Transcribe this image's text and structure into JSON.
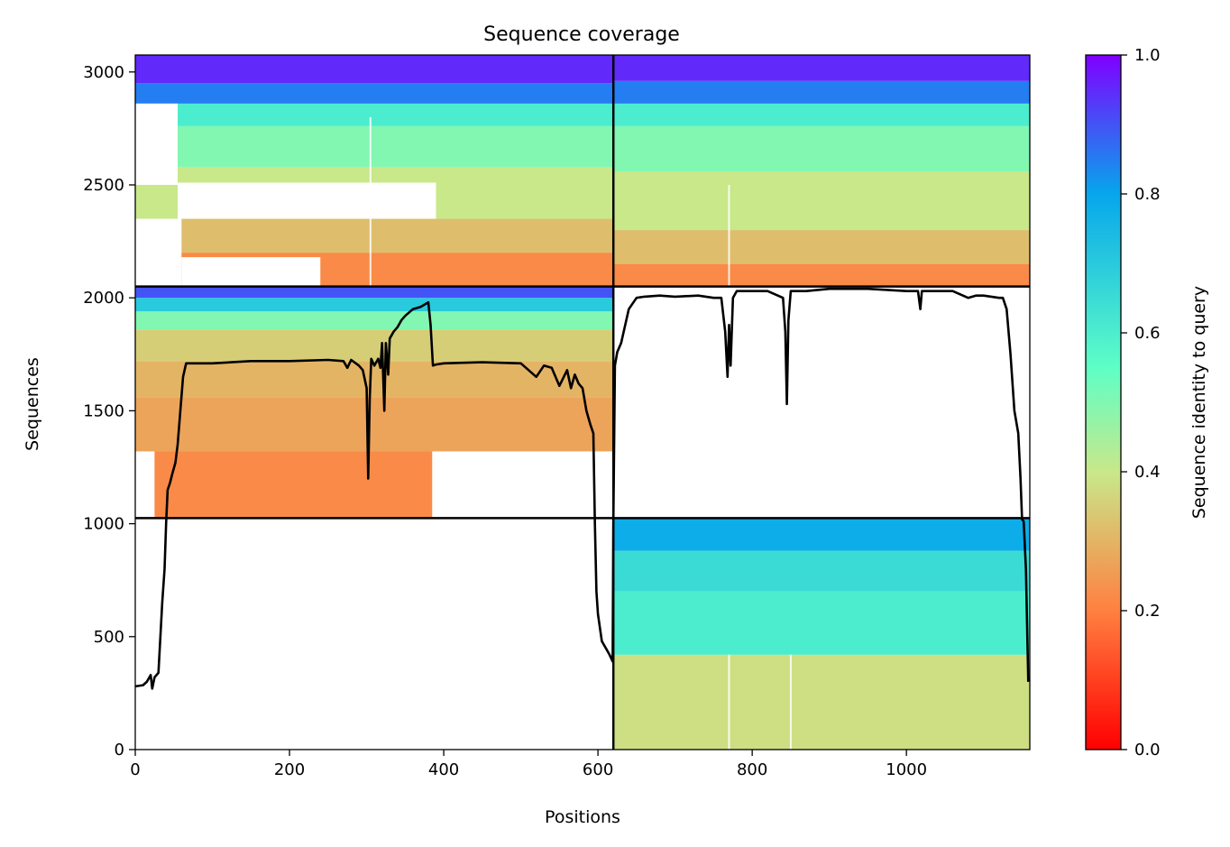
{
  "chart_data": {
    "type": "heatmap",
    "title": "Sequence coverage",
    "xlabel": "Positions",
    "ylabel": "Sequences",
    "xlim": [
      0,
      1160
    ],
    "ylim": [
      0,
      3075
    ],
    "xticks": [
      0,
      200,
      400,
      600,
      800,
      1000
    ],
    "yticks": [
      0,
      500,
      1000,
      1500,
      2000,
      2500,
      3000
    ],
    "grid": false,
    "colorbar": {
      "label": "Sequence identity to query",
      "range": [
        0,
        1
      ],
      "ticks": [
        "0.0",
        "0.2",
        "0.4",
        "0.6",
        "0.8",
        "1.0"
      ],
      "colormap": "rainbow",
      "stops": [
        "#ff0000",
        "#ff8040",
        "#c8e88a",
        "#5effc6",
        "#06a6ec",
        "#7f00ff"
      ]
    },
    "block_boundaries": {
      "x": [
        620
      ],
      "y": [
        1025,
        2050
      ]
    },
    "blocks": [
      {
        "id": "chain1-unpaired",
        "x": [
          0,
          620
        ],
        "y": [
          2050,
          3075
        ],
        "identity_bands": [
          {
            "y": [
              2050,
              2200
            ],
            "identity": 0.22
          },
          {
            "y": [
              2200,
              2350
            ],
            "identity": 0.32
          },
          {
            "y": [
              2350,
              2580
            ],
            "identity": 0.4
          },
          {
            "y": [
              2580,
              2760
            ],
            "identity": 0.5
          },
          {
            "y": [
              2760,
              2860
            ],
            "identity": 0.6
          },
          {
            "y": [
              2860,
              2950
            ],
            "identity": 0.85
          },
          {
            "y": [
              2950,
              3075
            ],
            "identity": 0.95
          }
        ]
      },
      {
        "id": "chain2-unpaired",
        "x": [
          620,
          1160
        ],
        "y": [
          2050,
          3075
        ],
        "identity_bands": [
          {
            "y": [
              2050,
              2150
            ],
            "identity": 0.22
          },
          {
            "y": [
              2150,
              2300
            ],
            "identity": 0.32
          },
          {
            "y": [
              2300,
              2560
            ],
            "identity": 0.4
          },
          {
            "y": [
              2560,
              2760
            ],
            "identity": 0.5
          },
          {
            "y": [
              2760,
              2860
            ],
            "identity": 0.6
          },
          {
            "y": [
              2860,
              2960
            ],
            "identity": 0.85
          },
          {
            "y": [
              2960,
              3075
            ],
            "identity": 0.95
          }
        ]
      },
      {
        "id": "chain1-paired",
        "x": [
          0,
          620
        ],
        "y": [
          1025,
          2050
        ],
        "identity_bands": [
          {
            "y": [
              1025,
              1320
            ],
            "identity": 0.22
          },
          {
            "y": [
              1320,
              1560
            ],
            "identity": 0.27
          },
          {
            "y": [
              1560,
              1720
            ],
            "identity": 0.3
          },
          {
            "y": [
              1720,
              1860
            ],
            "identity": 0.35
          },
          {
            "y": [
              1860,
              1940
            ],
            "identity": 0.5
          },
          {
            "y": [
              1940,
              2000
            ],
            "identity": 0.7
          },
          {
            "y": [
              2000,
              2050
            ],
            "identity": 0.9
          }
        ]
      },
      {
        "id": "chain2-padded",
        "x": [
          620,
          1160
        ],
        "y": [
          0,
          1025
        ],
        "identity_bands": [
          {
            "y": [
              0,
              420
            ],
            "identity": 0.38
          },
          {
            "y": [
              420,
              700
            ],
            "identity": 0.6
          },
          {
            "y": [
              700,
              880
            ],
            "identity": 0.65
          },
          {
            "y": [
              880,
              1025
            ],
            "identity": 0.78
          }
        ]
      }
    ],
    "series": [
      {
        "type": "line",
        "x": [
          0,
          10,
          15,
          20,
          22,
          25,
          30,
          35,
          38,
          40,
          42,
          45,
          48,
          52,
          55,
          58,
          62,
          66,
          70,
          100,
          150,
          200,
          250,
          270,
          275,
          280,
          290,
          295,
          300,
          302,
          304,
          306,
          310,
          315,
          318,
          320,
          323,
          325,
          328,
          330,
          335,
          340,
          345,
          350,
          360,
          370,
          380,
          383,
          386,
          390,
          400,
          450,
          500,
          520,
          530,
          540,
          550,
          560,
          565,
          570,
          575,
          580,
          585,
          590,
          594,
          596,
          598,
          600,
          605,
          610,
          615,
          619,
          620,
          622,
          625,
          630,
          640,
          650,
          660,
          680,
          700,
          730,
          750,
          760,
          765,
          768,
          770,
          772,
          775,
          780,
          800,
          820,
          840,
          843,
          845,
          847,
          850,
          855,
          870,
          900,
          950,
          1000,
          1015,
          1018,
          1020,
          1030,
          1060,
          1080,
          1090,
          1100,
          1120,
          1125,
          1130,
          1135,
          1140,
          1145,
          1148,
          1150,
          1152,
          1155,
          1158
        ],
        "y": [
          280,
          285,
          300,
          330,
          270,
          320,
          340,
          650,
          800,
          1000,
          1150,
          1180,
          1220,
          1270,
          1350,
          1480,
          1650,
          1710,
          1710,
          1710,
          1720,
          1720,
          1725,
          1720,
          1690,
          1725,
          1700,
          1680,
          1600,
          1200,
          1550,
          1730,
          1700,
          1730,
          1690,
          1800,
          1500,
          1800,
          1660,
          1820,
          1850,
          1870,
          1900,
          1920,
          1950,
          1960,
          1980,
          1880,
          1700,
          1705,
          1710,
          1715,
          1710,
          1650,
          1700,
          1690,
          1610,
          1680,
          1600,
          1660,
          1620,
          1600,
          1500,
          1440,
          1400,
          1000,
          700,
          600,
          480,
          450,
          420,
          390,
          1020,
          1700,
          1760,
          1800,
          1950,
          2000,
          2005,
          2010,
          2005,
          2010,
          2000,
          2000,
          1850,
          1650,
          1880,
          1700,
          2000,
          2030,
          2030,
          2030,
          2000,
          1850,
          1530,
          1900,
          2030,
          2030,
          2030,
          2040,
          2040,
          2030,
          2030,
          1950,
          2030,
          2030,
          2030,
          2000,
          2010,
          2010,
          2000,
          2000,
          1950,
          1750,
          1500,
          1400,
          1200,
          1020,
          1010,
          800,
          300
        ]
      }
    ]
  }
}
